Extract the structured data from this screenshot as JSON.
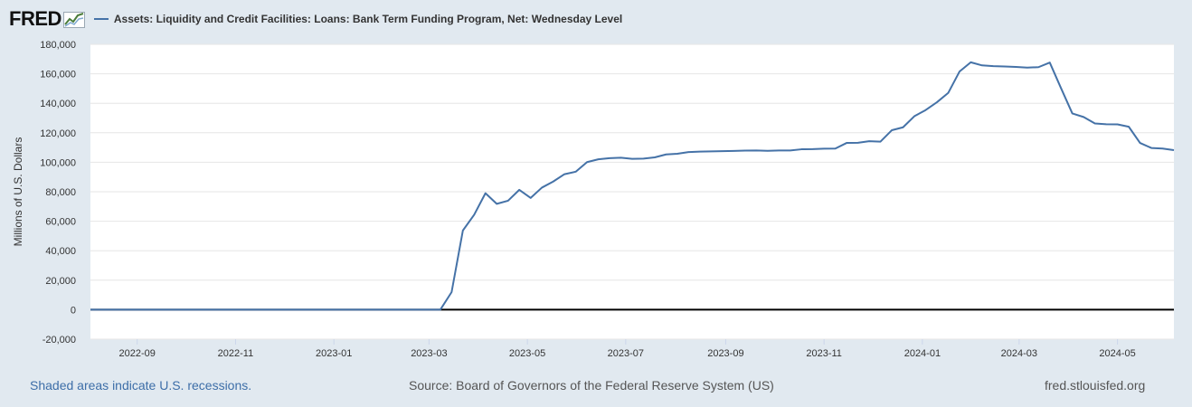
{
  "header": {
    "logo_text": "FRED",
    "series_title": "Assets: Liquidity and Credit Facilities: Loans: Bank Term Funding Program, Net: Wednesday Level"
  },
  "footer": {
    "recession_note": "Shaded areas indicate U.S. recessions.",
    "source": "Source: Board of Governors of the Federal Reserve System (US)",
    "site": "fred.stlouisfed.org"
  },
  "colors": {
    "line": "#4572a7",
    "background": "#e1e9f0",
    "plot": "#ffffff",
    "zero_line": "#000000"
  },
  "chart_data": {
    "type": "line",
    "ylabel": "Millions of U.S. Dollars",
    "ylim": [
      -20000,
      180000
    ],
    "yticks": [
      -20000,
      0,
      20000,
      40000,
      60000,
      80000,
      100000,
      120000,
      140000,
      160000,
      180000
    ],
    "ytick_labels": [
      "-20,000",
      "0",
      "20,000",
      "40,000",
      "60,000",
      "80,000",
      "100,000",
      "120,000",
      "140,000",
      "160,000",
      "180,000"
    ],
    "xlim": [
      "2022-08-03",
      "2024-06-05"
    ],
    "xtick_labels": [
      "2022-09",
      "2022-11",
      "2023-01",
      "2023-03",
      "2023-05",
      "2023-07",
      "2023-09",
      "2023-11",
      "2024-01",
      "2024-03",
      "2024-05"
    ],
    "xtick_dates": [
      "2022-09-01",
      "2022-11-01",
      "2023-01-01",
      "2023-03-01",
      "2023-05-01",
      "2023-07-01",
      "2023-09-01",
      "2023-11-01",
      "2024-01-01",
      "2024-03-01",
      "2024-05-01"
    ],
    "grid": true,
    "legend": "top-left",
    "series": [
      {
        "name": "Assets: Liquidity and Credit Facilities: Loans: Bank Term Funding Program, Net: Wednesday Level",
        "points": [
          [
            "2022-08-03",
            0
          ],
          [
            "2023-03-08",
            0
          ],
          [
            "2023-03-15",
            11900
          ],
          [
            "2023-03-22",
            53700
          ],
          [
            "2023-03-29",
            64400
          ],
          [
            "2023-04-05",
            79000
          ],
          [
            "2023-04-12",
            71800
          ],
          [
            "2023-04-19",
            73900
          ],
          [
            "2023-04-26",
            81300
          ],
          [
            "2023-05-03",
            75800
          ],
          [
            "2023-05-10",
            82800
          ],
          [
            "2023-05-17",
            86900
          ],
          [
            "2023-05-24",
            91900
          ],
          [
            "2023-05-31",
            93600
          ],
          [
            "2023-06-07",
            100100
          ],
          [
            "2023-06-14",
            102000
          ],
          [
            "2023-06-21",
            102800
          ],
          [
            "2023-06-28",
            103100
          ],
          [
            "2023-07-05",
            102300
          ],
          [
            "2023-07-12",
            102500
          ],
          [
            "2023-07-19",
            103300
          ],
          [
            "2023-07-26",
            105300
          ],
          [
            "2023-08-02",
            105800
          ],
          [
            "2023-08-09",
            106900
          ],
          [
            "2023-08-16",
            107200
          ],
          [
            "2023-08-23",
            107400
          ],
          [
            "2023-08-30",
            107500
          ],
          [
            "2023-09-06",
            107700
          ],
          [
            "2023-09-13",
            107900
          ],
          [
            "2023-09-20",
            108000
          ],
          [
            "2023-09-27",
            107800
          ],
          [
            "2023-10-04",
            108000
          ],
          [
            "2023-10-11",
            108000
          ],
          [
            "2023-10-18",
            108800
          ],
          [
            "2023-10-25",
            108900
          ],
          [
            "2023-11-01",
            109200
          ],
          [
            "2023-11-08",
            109300
          ],
          [
            "2023-11-15",
            113100
          ],
          [
            "2023-11-22",
            113200
          ],
          [
            "2023-11-29",
            114300
          ],
          [
            "2023-12-06",
            114000
          ],
          [
            "2023-12-13",
            121700
          ],
          [
            "2023-12-20",
            123700
          ],
          [
            "2023-12-27",
            131200
          ],
          [
            "2024-01-03",
            135400
          ],
          [
            "2024-01-10",
            140700
          ],
          [
            "2024-01-17",
            147000
          ],
          [
            "2024-01-24",
            161500
          ],
          [
            "2024-01-31",
            167800
          ],
          [
            "2024-02-07",
            165700
          ],
          [
            "2024-02-14",
            165200
          ],
          [
            "2024-02-21",
            165000
          ],
          [
            "2024-02-28",
            164700
          ],
          [
            "2024-03-06",
            164200
          ],
          [
            "2024-03-13",
            164500
          ],
          [
            "2024-03-20",
            167600
          ],
          [
            "2024-03-27",
            150200
          ],
          [
            "2024-04-03",
            133100
          ],
          [
            "2024-04-10",
            130700
          ],
          [
            "2024-04-17",
            126300
          ],
          [
            "2024-04-24",
            125800
          ],
          [
            "2024-05-01",
            125700
          ],
          [
            "2024-05-08",
            124100
          ],
          [
            "2024-05-15",
            113100
          ],
          [
            "2024-05-22",
            109700
          ],
          [
            "2024-05-29",
            109300
          ],
          [
            "2024-06-05",
            108200
          ]
        ]
      }
    ]
  }
}
